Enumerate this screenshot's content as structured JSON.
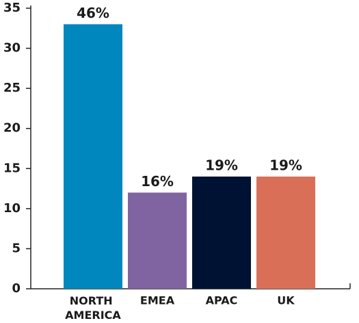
{
  "chart_data": {
    "type": "bar",
    "categories": [
      "NORTH AMERICA",
      "EMEA",
      "APAC",
      "UK"
    ],
    "values": [
      33,
      12,
      14,
      14
    ],
    "annotations": [
      "46%",
      "16%",
      "19%",
      "19%"
    ],
    "colors": [
      "#0087bd",
      "#8064a2",
      "#001233",
      "#da6f58"
    ],
    "ylim": [
      0,
      35
    ],
    "yticks": [
      0,
      5,
      10,
      15,
      20,
      25,
      30,
      35
    ],
    "grid": false
  }
}
